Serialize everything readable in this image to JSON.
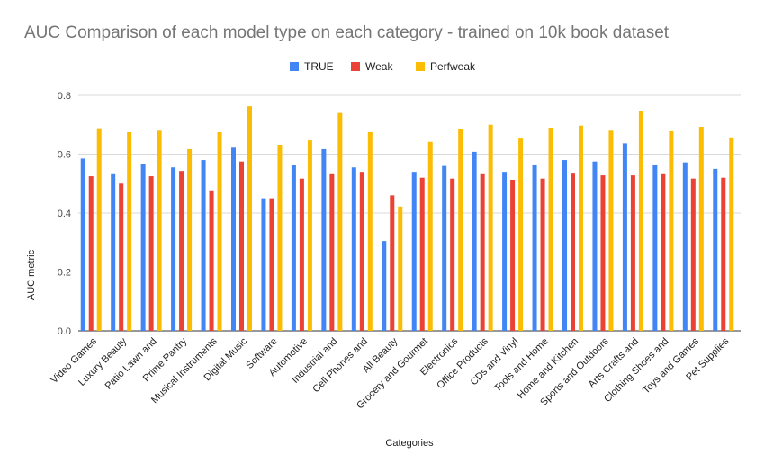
{
  "chart_data": {
    "type": "bar",
    "title": "AUC Comparison of each model type on each category - trained on 10k book dataset",
    "xlabel": "Categories",
    "ylabel": "AUC metric",
    "ylim": [
      0,
      0.8
    ],
    "yticks": [
      0.0,
      0.2,
      0.4,
      0.6,
      0.8
    ],
    "yticklabels": [
      "0.0",
      "0.2",
      "0.4",
      "0.6",
      "0.8"
    ],
    "grid": true,
    "legend_position": "top",
    "categories": [
      "Video Games",
      "Luxury Beauty",
      "Patio Lawn and",
      "Prime Pantry",
      "Musical Instruments",
      "Digital Music",
      "Software",
      "Automotive",
      "Industrial and",
      "Cell Phones and",
      "All Beauty",
      "Grocery and Gourmet",
      "Electronics",
      "Office Products",
      "CDs and Vinyl",
      "Tools and Home",
      "Home and Kitchen",
      "Sports and Outdoors",
      "Arts Crafts and",
      "Clothing Shoes and",
      "Toys and Games",
      "Pet Supplies"
    ],
    "series": [
      {
        "name": "TRUE",
        "color": "#4285f4",
        "values": [
          0.585,
          0.535,
          0.568,
          0.555,
          0.58,
          0.622,
          0.45,
          0.562,
          0.617,
          0.555,
          0.305,
          0.54,
          0.56,
          0.608,
          0.54,
          0.565,
          0.58,
          0.575,
          0.637,
          0.565,
          0.572,
          0.55
        ]
      },
      {
        "name": "Weak",
        "color": "#ea4335",
        "values": [
          0.525,
          0.5,
          0.525,
          0.543,
          0.477,
          0.575,
          0.45,
          0.517,
          0.535,
          0.54,
          0.46,
          0.52,
          0.517,
          0.535,
          0.513,
          0.517,
          0.537,
          0.528,
          0.528,
          0.535,
          0.517,
          0.52
        ]
      },
      {
        "name": "Perfweak",
        "color": "#fbbc04",
        "values": [
          0.688,
          0.675,
          0.68,
          0.617,
          0.675,
          0.763,
          0.632,
          0.647,
          0.74,
          0.675,
          0.422,
          0.642,
          0.685,
          0.7,
          0.653,
          0.69,
          0.697,
          0.68,
          0.745,
          0.678,
          0.693,
          0.657
        ]
      }
    ]
  }
}
